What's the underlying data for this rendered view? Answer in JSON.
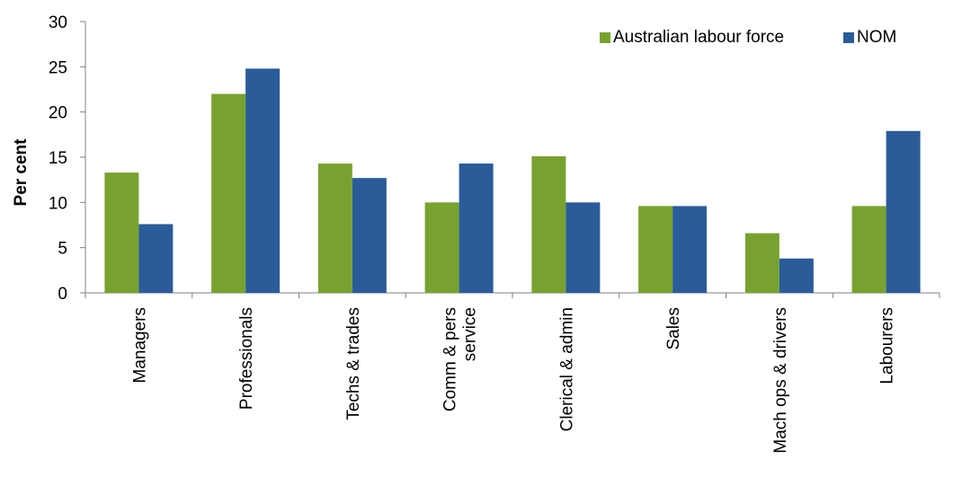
{
  "chart_data": {
    "type": "bar",
    "title": "",
    "xlabel": "",
    "ylabel": "Per cent",
    "ylim": [
      0,
      30
    ],
    "yticks": [
      0,
      5,
      10,
      15,
      20,
      25,
      30
    ],
    "grid": false,
    "legend_position": "top-right",
    "categories": [
      [
        "Managers"
      ],
      [
        "Professionals"
      ],
      [
        "Techs & trades"
      ],
      [
        "Comm & pers",
        "service"
      ],
      [
        "Clerical & admin"
      ],
      [
        "Sales"
      ],
      [
        "Mach ops & drivers"
      ],
      [
        "Labourers"
      ]
    ],
    "series": [
      {
        "name": "Australian labour force",
        "color": "#78A22F",
        "values": [
          13.3,
          22.0,
          14.3,
          10.0,
          15.1,
          9.6,
          6.6,
          9.6
        ]
      },
      {
        "name": "NOM",
        "color": "#2A5C9A",
        "values": [
          7.6,
          24.8,
          12.7,
          14.3,
          10.0,
          9.6,
          3.8,
          17.9
        ]
      }
    ]
  }
}
